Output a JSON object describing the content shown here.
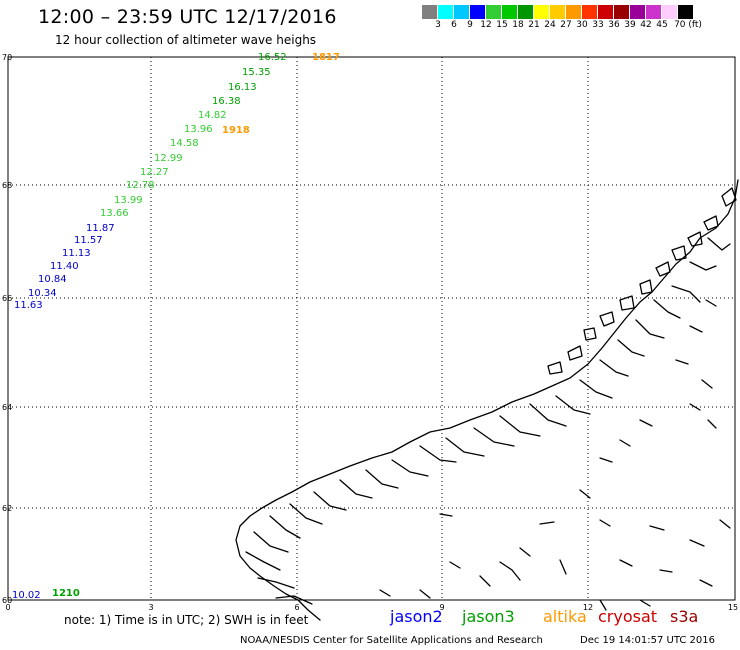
{
  "title": "12:00 – 23:59 UTC 12/17/2016",
  "subtitle": "12 hour collection of altimeter wave heighs",
  "legend": {
    "colors": [
      "#808080",
      "#00ffff",
      "#00c8ff",
      "#0000ff",
      "#32cd32",
      "#00c800",
      "#009600",
      "#ffff00",
      "#ffcc00",
      "#ff9900",
      "#ff3300",
      "#cc0000",
      "#990000",
      "#990099",
      "#cc33cc",
      "#ffccff",
      "#000000"
    ],
    "labels": [
      "3",
      "6",
      "9",
      "12",
      "15",
      "18",
      "21",
      "24",
      "27",
      "30",
      "33",
      "36",
      "39",
      "42",
      "45",
      "70 (ft)"
    ]
  },
  "map": {
    "x_ticks": [
      "0",
      "3",
      "6",
      "9",
      "12",
      "15"
    ],
    "y_ticks": [
      "70",
      "68",
      "66",
      "64",
      "62",
      "60"
    ],
    "readings": [
      {
        "text": "16.52",
        "sat": "jason3",
        "color": "#00a000"
      },
      {
        "text": "1817",
        "sat": "altika",
        "color": "#ff9900",
        "bold": true
      },
      {
        "text": "15.35",
        "sat": "jason3",
        "color": "#00a000"
      },
      {
        "text": "16.13",
        "sat": "jason3",
        "color": "#00a000"
      },
      {
        "text": "16.38",
        "sat": "jason3",
        "color": "#00a000"
      },
      {
        "text": "14.82",
        "sat": "jason3",
        "color": "#33cc33"
      },
      {
        "text": "13.96",
        "sat": "jason3",
        "color": "#33cc33"
      },
      {
        "text": "1918",
        "sat": "altika",
        "color": "#ff9900",
        "bold": true
      },
      {
        "text": "14.58",
        "sat": "jason3",
        "color": "#33cc33"
      },
      {
        "text": "12.99",
        "sat": "jason3",
        "color": "#33cc33"
      },
      {
        "text": "12.27",
        "sat": "jason3",
        "color": "#33cc33"
      },
      {
        "text": "12.78",
        "sat": "jason3",
        "color": "#33cc33"
      },
      {
        "text": "13.99",
        "sat": "jason3",
        "color": "#33cc33"
      },
      {
        "text": "13.66",
        "sat": "jason3",
        "color": "#33cc33"
      },
      {
        "text": "11.87",
        "sat": "jason2",
        "color": "#0000cc"
      },
      {
        "text": "11.57",
        "sat": "jason2",
        "color": "#0000cc"
      },
      {
        "text": "11.13",
        "sat": "jason2",
        "color": "#0000cc"
      },
      {
        "text": "11.40",
        "sat": "jason2",
        "color": "#0000cc"
      },
      {
        "text": "10.84",
        "sat": "jason2",
        "color": "#0000cc"
      },
      {
        "text": "10.34",
        "sat": "jason2",
        "color": "#0000cc"
      },
      {
        "text": "11.63",
        "sat": "jason2",
        "color": "#0000cc"
      },
      {
        "text": "10.02",
        "sat": "jason2",
        "color": "#0000cc"
      },
      {
        "text": "1210",
        "sat": "jason3",
        "color": "#00a000",
        "bold": true
      }
    ]
  },
  "note": "note: 1) Time is in UTC; 2) SWH is in feet",
  "satellites": [
    {
      "name": "jason2",
      "color": "#0000ff"
    },
    {
      "name": "jason3",
      "color": "#00a000"
    },
    {
      "name": "altika",
      "color": "#ff9900"
    },
    {
      "name": "cryosat",
      "color": "#cc0000"
    },
    {
      "name": "s3a",
      "color": "#990000"
    }
  ],
  "footer": {
    "source": "NOAA/NESDIS Center for Satellite Applications and Research",
    "timestamp": "Dec 19 14:01:57 UTC 2016"
  }
}
